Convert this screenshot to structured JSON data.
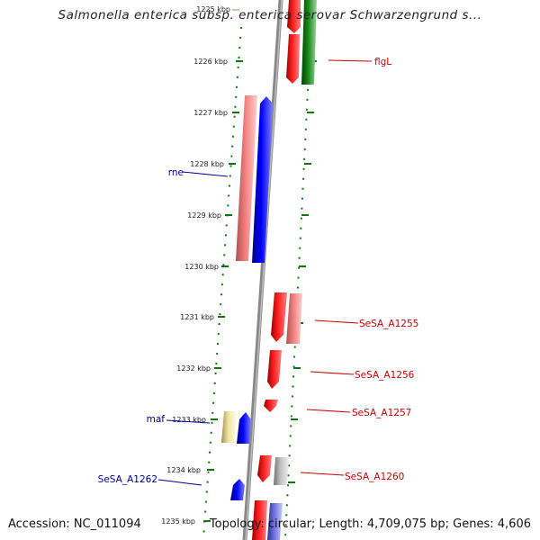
{
  "title": "Salmonella enterica subsp. enterica serovar Schwarzengrund s...",
  "footer": {
    "accession": "Accession: NC_011094",
    "topology": "Topology: circular; Length: 4,709,075 bp; Genes: 4,606"
  },
  "ticks": [
    {
      "label": "1225 kbp",
      "faded": true
    },
    {
      "label": "1226 kbp"
    },
    {
      "label": "1227 kbp"
    },
    {
      "label": "1228 kbp"
    },
    {
      "label": "1229 kbp"
    },
    {
      "label": "1230 kbp"
    },
    {
      "label": "1231 kbp"
    },
    {
      "label": "1232 kbp"
    },
    {
      "label": "1233 kbp"
    },
    {
      "label": "1234 kbp"
    },
    {
      "label": "1235 kbp"
    }
  ],
  "gene_labels": [
    {
      "text": "flgL",
      "color": "#cc0000"
    },
    {
      "text": "rne",
      "color": "#000099"
    },
    {
      "text": "SeSA_A1255",
      "color": "#cc0000"
    },
    {
      "text": "SeSA_A1256",
      "color": "#cc0000"
    },
    {
      "text": "SeSA_A1257",
      "color": "#cc0000"
    },
    {
      "text": "maf",
      "color": "#000099"
    },
    {
      "text": "SeSA_A1260",
      "color": "#cc0000"
    },
    {
      "text": "SeSA_A1262",
      "color": "#000099"
    }
  ],
  "colors": {
    "backbone": "#808080",
    "red": "#ff0000",
    "pink": "#f28080",
    "blue": "#0000ff",
    "green": "#008000",
    "yellow": "#f0e6a0",
    "grey": "#c0c0c0",
    "violet": "#7070e0",
    "tick": "#006600"
  }
}
